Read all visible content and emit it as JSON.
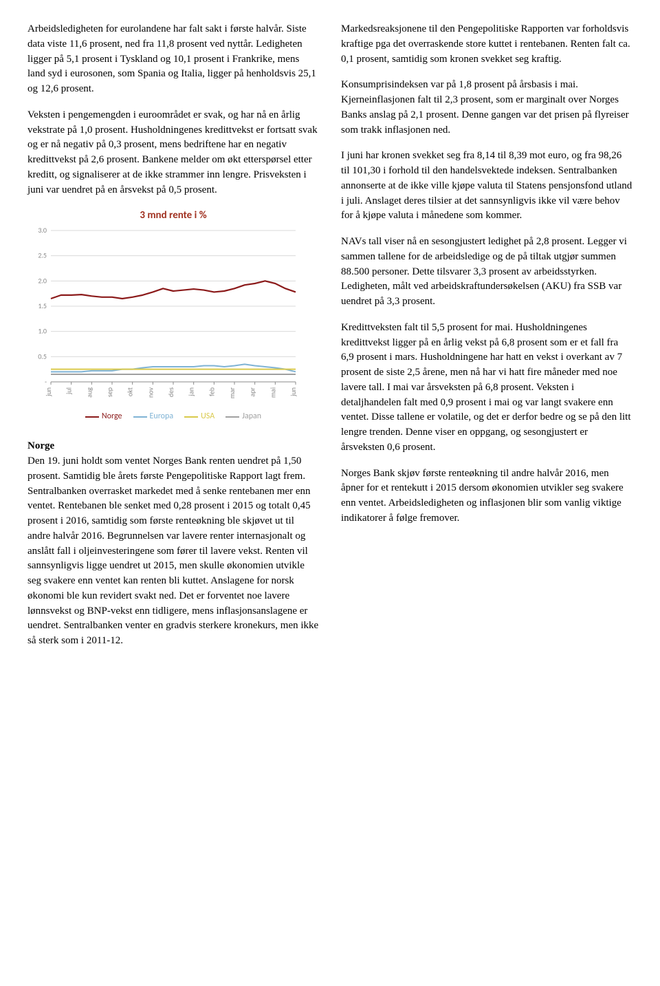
{
  "left": {
    "p1": "Arbeidsledigheten for eurolandene har falt sakt i første halvår. Siste data viste 11,6 prosent, ned fra 11,8 prosent ved nyttår. Ledigheten ligger på 5,1 prosent i Tyskland og 10,1 prosent i Frankrike, mens land syd i eurosonen, som Spania og Italia, ligger på henholdsvis 25,1 og 12,6 prosent.",
    "p2": "Veksten i pengemengden i euroområdet er svak, og har nå en årlig vekstrate på 1,0 prosent. Husholdningenes kredittvekst er fortsatt svak og er nå negativ på 0,3 prosent, mens bedriftene har en negativ kredittvekst på 2,6 prosent. Bankene melder om økt etterspørsel etter kreditt, og signaliserer at de ikke strammer inn lengre. Prisveksten i juni var uendret på en årsvekst på 0,5 prosent.",
    "section_title": "Norge",
    "p3": "Den 19. juni holdt som ventet Norges Bank renten uendret på 1,50 prosent. Samtidig ble årets første Pengepolitiske Rapport lagt frem. Sentralbanken overrasket markedet med å senke rentebanen mer enn ventet. Rentebanen ble senket med 0,28 prosent i 2015 og totalt 0,45 prosent i 2016, samtidig som første renteøkning ble skjøvet ut til andre halvår 2016. Begrunnelsen var lavere renter internasjonalt og anslått fall i oljeinvesteringene som fører til lavere vekst. Renten vil sannsynligvis ligge uendret ut 2015, men skulle økonomien utvikle seg svakere enn ventet kan renten bli kuttet. Anslagene for norsk økonomi ble kun revidert svakt ned. Det er forventet noe lavere lønnsvekst og BNP-vekst enn tidligere, mens inflasjonsanslagene er uendret. Sentralbanken venter en gradvis sterkere kronekurs, men ikke så sterk som i 2011-12."
  },
  "right": {
    "p1": "Markedsreaksjonene til den Pengepolitiske Rapporten var forholdsvis kraftige pga det overraskende store kuttet i rentebanen. Renten falt ca. 0,1 prosent, samtidig som kronen svekket seg kraftig.",
    "p2": "Konsumprisindeksen var på 1,8 prosent på årsbasis i mai. Kjerneinflasjonen falt til 2,3 prosent, som er marginalt over Norges Banks anslag på 2,1 prosent. Denne gangen var det prisen på flyreiser som trakk inflasjonen ned.",
    "p3": "I juni har kronen svekket seg fra 8,14 til 8,39 mot euro, og fra 98,26 til 101,30 i forhold til den handelsvektede indeksen. Sentralbanken annonserte at de ikke ville kjøpe valuta til Statens pensjonsfond utland i juli. Anslaget deres tilsier at det sannsynligvis ikke vil være behov for å kjøpe valuta i månedene som kommer.",
    "p4": "NAVs tall viser nå en sesongjustert ledighet på 2,8 prosent. Legger vi sammen tallene for de arbeidsledige og de på tiltak utgjør summen 88.500 personer. Dette tilsvarer 3,3 prosent av arbeidsstyrken. Ledigheten, målt ved arbeidskraftundersøkelsen (AKU) fra SSB var uendret på 3,3 prosent.",
    "p5": "Kredittveksten falt til 5,5 prosent for mai. Husholdningenes kredittvekst ligger på en årlig vekst på 6,8 prosent som er et fall fra 6,9 prosent i mars. Husholdningene har hatt en vekst i overkant av 7 prosent de siste 2,5 årene, men nå har vi hatt fire måneder med noe lavere tall. I mai var årsveksten på 6,8 prosent. Veksten i detaljhandelen falt med 0,9 prosent i mai og var langt svakere enn ventet. Disse tallene er volatile, og det er derfor bedre og se på den litt lengre trenden. Denne viser en oppgang, og sesongjustert er årsveksten 0,6 prosent.",
    "p6": "Norges Bank skjøv første renteøkning til andre halvår 2016, men åpner for et rentekutt i 2015 dersom økonomien utvikler seg svakere enn ventet. Arbeidsledigheten og inflasjonen blir som vanlig viktige indikatorer å følge fremover."
  },
  "chart": {
    "type": "line",
    "title": "3 mnd rente i %",
    "title_color": "#a03020",
    "title_fontsize": 15,
    "background_color": "#ffffff",
    "grid_color": "#d9d9d9",
    "axis_color": "#888888",
    "axis_label_color": "#888888",
    "axis_fontsize": 10,
    "ylim": [
      0,
      3.0
    ],
    "ytick_step": 0.5,
    "yticks": [
      "-",
      "0.5",
      "1.0",
      "1.5",
      "2.0",
      "2.5",
      "3.0"
    ],
    "categories": [
      "jun",
      "jul",
      "aug",
      "sep",
      "okt",
      "nov",
      "des",
      "jan",
      "feb",
      "mar",
      "apr",
      "mai",
      "jun"
    ],
    "series": [
      {
        "name": "Norge",
        "color": "#8b1a1a",
        "width": 2.2,
        "values": [
          1.65,
          1.72,
          1.72,
          1.73,
          1.7,
          1.68,
          1.68,
          1.65,
          1.68,
          1.72,
          1.78,
          1.85,
          1.8,
          1.82,
          1.84,
          1.82,
          1.78,
          1.8,
          1.85,
          1.92,
          1.95,
          2.0,
          1.95,
          1.85,
          1.78
        ]
      },
      {
        "name": "Europa",
        "color": "#7fb3d5",
        "width": 2,
        "values": [
          0.2,
          0.2,
          0.2,
          0.2,
          0.22,
          0.22,
          0.22,
          0.25,
          0.25,
          0.28,
          0.3,
          0.3,
          0.3,
          0.3,
          0.3,
          0.32,
          0.32,
          0.3,
          0.32,
          0.35,
          0.32,
          0.3,
          0.28,
          0.25,
          0.2
        ]
      },
      {
        "name": "USA",
        "color": "#d9c94a",
        "width": 2,
        "values": [
          0.25,
          0.25,
          0.25,
          0.25,
          0.25,
          0.25,
          0.25,
          0.25,
          0.25,
          0.25,
          0.25,
          0.25,
          0.25,
          0.25,
          0.25,
          0.25,
          0.25,
          0.25,
          0.25,
          0.25,
          0.25,
          0.25,
          0.25,
          0.25,
          0.25
        ]
      },
      {
        "name": "Japan",
        "color": "#a0a0a0",
        "width": 2,
        "values": [
          0.15,
          0.15,
          0.15,
          0.15,
          0.15,
          0.15,
          0.15,
          0.15,
          0.15,
          0.15,
          0.15,
          0.15,
          0.15,
          0.15,
          0.15,
          0.15,
          0.15,
          0.15,
          0.15,
          0.15,
          0.15,
          0.15,
          0.15,
          0.15,
          0.15
        ]
      }
    ],
    "legend": [
      {
        "label": "Norge",
        "color": "#8b1a1a"
      },
      {
        "label": "Europa",
        "color": "#7fb3d5"
      },
      {
        "label": "USA",
        "color": "#d9c94a"
      },
      {
        "label": "Japan",
        "color": "#a0a0a0"
      }
    ]
  }
}
